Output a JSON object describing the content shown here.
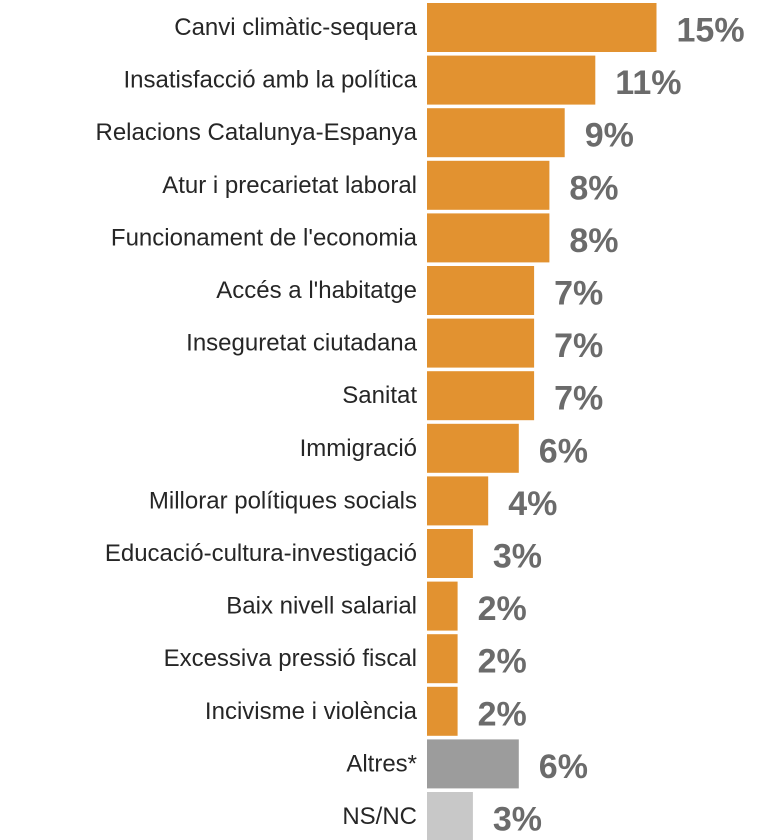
{
  "chart_data": {
    "type": "bar",
    "orientation": "horizontal",
    "categories": [
      "Canvi climàtic-sequera",
      "Insatisfacció amb la política",
      "Relacions Catalunya-Espanya",
      "Atur i precarietat laboral",
      "Funcionament de l'economia",
      "Accés a l'habitatge",
      "Inseguretat ciutadana",
      "Sanitat",
      "Immigració",
      "Millorar polítiques socials",
      "Educació-cultura-investigació",
      "Baix nivell salarial",
      "Excessiva pressió fiscal",
      "Incivisme i violència",
      "Altres*",
      "NS/NC"
    ],
    "values": [
      15,
      11,
      9,
      8,
      8,
      7,
      7,
      7,
      6,
      4,
      3,
      2,
      2,
      2,
      6,
      3
    ],
    "value_labels": [
      "15%",
      "11%",
      "9%",
      "8%",
      "8%",
      "7%",
      "7%",
      "7%",
      "6%",
      "4%",
      "3%",
      "2%",
      "2%",
      "2%",
      "6%",
      "3%"
    ],
    "bar_colors": [
      "#e29230",
      "#e29230",
      "#e29230",
      "#e29230",
      "#e29230",
      "#e29230",
      "#e29230",
      "#e29230",
      "#e29230",
      "#e29230",
      "#e29230",
      "#e29230",
      "#e29230",
      "#e29230",
      "#9c9c9c",
      "#c8c8c8"
    ],
    "value_label_color": "#6b6b6b",
    "title": "",
    "xlabel": "",
    "ylabel": "",
    "xlim": [
      0,
      15
    ],
    "grid": false,
    "legend": "none"
  }
}
